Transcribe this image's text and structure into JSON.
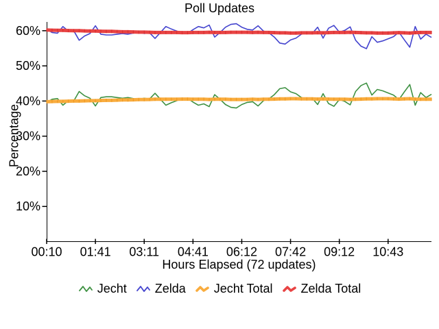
{
  "chart_data": {
    "type": "line",
    "title": "Poll Updates",
    "xlabel": "Hours Elapsed (72 updates)",
    "ylabel": "Percentage",
    "background": "#ffffff",
    "axis_color": "#000000",
    "grid": false,
    "legend_position": "bottom",
    "n_points": 72,
    "ylim": [
      0,
      62.5
    ],
    "y_ticks": [
      {
        "value": 10,
        "label": "10%"
      },
      {
        "value": 20,
        "label": "20%"
      },
      {
        "value": 30,
        "label": "30%"
      },
      {
        "value": 40,
        "label": "40%"
      },
      {
        "value": 50,
        "label": "50%"
      },
      {
        "value": 60,
        "label": "60%"
      }
    ],
    "x_tick_labels": [
      "00:10",
      "01:41",
      "03:11",
      "04:41",
      "06:12",
      "07:42",
      "09:12",
      "10:43"
    ],
    "x_tick_indices": [
      0,
      9,
      18,
      27,
      36,
      45,
      54,
      63
    ],
    "series": [
      {
        "name": "Jecht",
        "color": "#3E9142",
        "width": 1.6,
        "values": [
          39.6,
          40.5,
          40.7,
          38.8,
          40.1,
          40.0,
          42.7,
          41.5,
          40.8,
          38.6,
          41.0,
          41.2,
          41.2,
          41.0,
          40.8,
          41.0,
          40.7,
          40.5,
          40.8,
          40.6,
          42.2,
          40.5,
          38.8,
          39.5,
          40.1,
          40.6,
          40.8,
          39.7,
          38.8,
          39.2,
          38.4,
          41.8,
          40.5,
          39.0,
          38.2,
          38.0,
          39.0,
          39.6,
          39.8,
          38.6,
          40.1,
          40.6,
          41.8,
          43.5,
          43.8,
          42.6,
          42.1,
          41.0,
          40.6,
          40.8,
          39.0,
          42.1,
          39.3,
          38.5,
          40.4,
          39.9,
          38.9,
          42.7,
          44.4,
          45.1,
          41.7,
          43.3,
          42.9,
          42.3,
          41.7,
          40.4,
          42.6,
          44.7,
          38.8,
          42.4,
          41.0,
          41.9
        ]
      },
      {
        "name": "Zelda",
        "color": "#4444CE",
        "width": 1.6,
        "values": [
          60.4,
          59.5,
          59.3,
          61.2,
          59.9,
          60.0,
          57.3,
          58.5,
          59.2,
          61.4,
          59.0,
          58.8,
          58.8,
          59.0,
          59.2,
          59.0,
          59.3,
          59.5,
          59.2,
          59.4,
          57.8,
          59.5,
          61.2,
          60.5,
          59.9,
          59.4,
          59.2,
          60.3,
          61.2,
          60.8,
          61.6,
          58.2,
          59.5,
          61.0,
          61.8,
          62.0,
          61.0,
          60.4,
          60.2,
          61.4,
          59.9,
          59.4,
          58.2,
          56.5,
          56.2,
          57.4,
          57.9,
          59.0,
          59.4,
          59.2,
          61.0,
          57.9,
          60.7,
          61.5,
          59.6,
          60.1,
          61.1,
          57.3,
          55.6,
          54.9,
          58.3,
          56.7,
          57.1,
          57.7,
          58.3,
          59.6,
          57.4,
          55.3,
          61.2,
          57.6,
          59.0,
          58.1
        ]
      },
      {
        "name": "Jecht Total",
        "color": "#F9AC3E",
        "notch_color": "#EE9A22",
        "width": 5,
        "values": [
          39.8,
          39.85,
          39.9,
          39.9,
          39.95,
          40.0,
          40.0,
          40.05,
          40.1,
          40.1,
          40.15,
          40.2,
          40.2,
          40.25,
          40.3,
          40.3,
          40.35,
          40.4,
          40.4,
          40.45,
          40.5,
          40.5,
          40.5,
          40.5,
          40.5,
          40.55,
          40.55,
          40.5,
          40.5,
          40.5,
          40.45,
          40.5,
          40.5,
          40.5,
          40.45,
          40.45,
          40.45,
          40.45,
          40.5,
          40.45,
          40.5,
          40.5,
          40.55,
          40.6,
          40.6,
          40.65,
          40.65,
          40.6,
          40.6,
          40.6,
          40.55,
          40.6,
          40.55,
          40.5,
          40.5,
          40.5,
          40.45,
          40.5,
          40.55,
          40.6,
          40.6,
          40.65,
          40.65,
          40.65,
          40.6,
          40.55,
          40.6,
          40.65,
          40.55,
          40.5,
          40.5,
          40.5
        ]
      },
      {
        "name": "Zelda Total",
        "color": "#E84343",
        "notch_color": "#D93030",
        "width": 5,
        "values": [
          60.2,
          60.15,
          60.1,
          60.1,
          60.05,
          60.0,
          60.0,
          59.95,
          59.9,
          59.9,
          59.85,
          59.8,
          59.8,
          59.75,
          59.7,
          59.7,
          59.65,
          59.6,
          59.6,
          59.55,
          59.5,
          59.5,
          59.5,
          59.5,
          59.5,
          59.45,
          59.45,
          59.5,
          59.5,
          59.5,
          59.55,
          59.5,
          59.5,
          59.5,
          59.55,
          59.55,
          59.55,
          59.55,
          59.5,
          59.55,
          59.5,
          59.5,
          59.45,
          59.4,
          59.4,
          59.35,
          59.35,
          59.4,
          59.4,
          59.4,
          59.45,
          59.4,
          59.45,
          59.5,
          59.5,
          59.5,
          59.55,
          59.5,
          59.45,
          59.4,
          59.4,
          59.35,
          59.35,
          59.35,
          59.4,
          59.45,
          59.4,
          59.35,
          59.45,
          59.5,
          59.5,
          59.5
        ]
      }
    ]
  }
}
